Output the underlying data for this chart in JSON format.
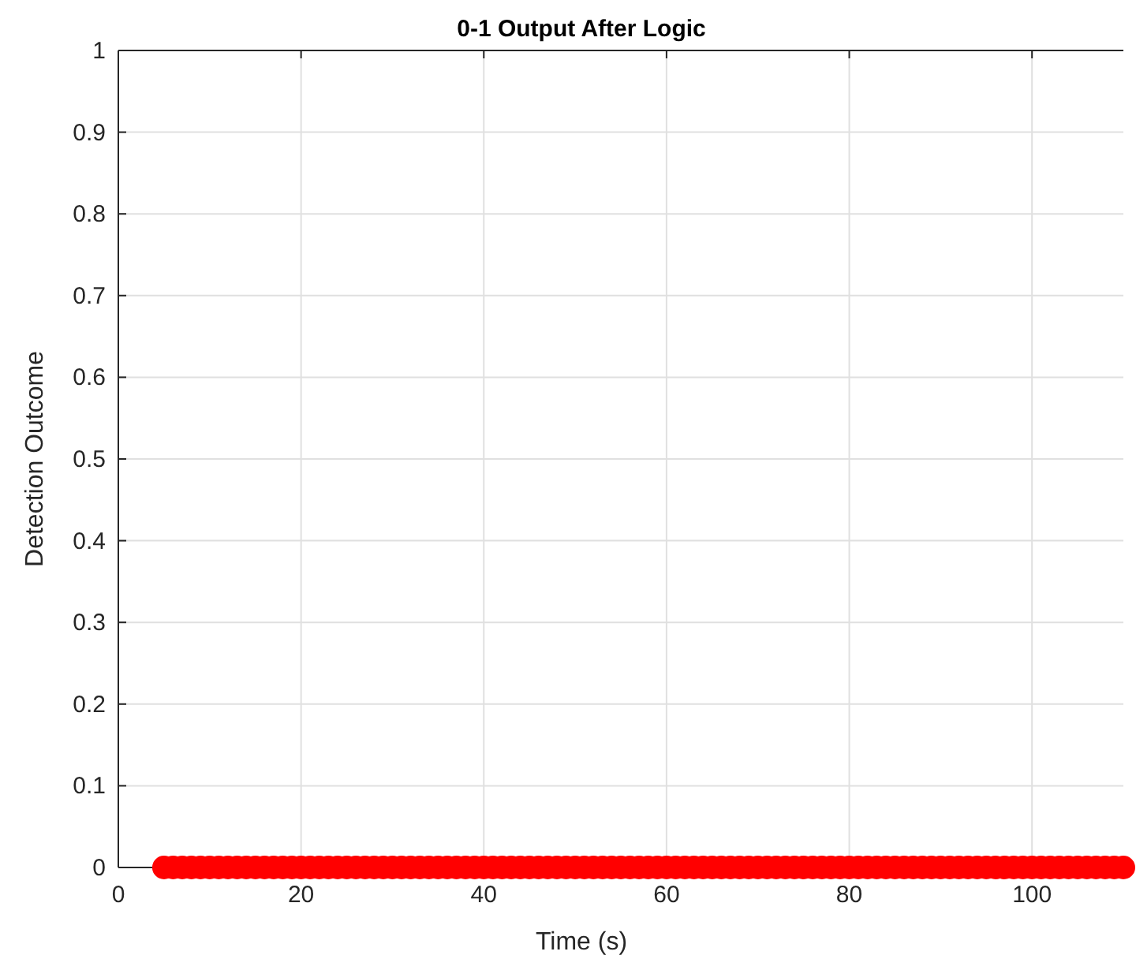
{
  "chart_data": {
    "type": "scatter",
    "title": "0-1 Output After Logic",
    "xlabel": "Time (s)",
    "ylabel": "Detection Outcome",
    "xlim": [
      0,
      110
    ],
    "ylim": [
      0,
      1
    ],
    "xticks": [
      0,
      20,
      40,
      60,
      80,
      100
    ],
    "yticks": [
      0,
      0.1,
      0.2,
      0.3,
      0.4,
      0.5,
      0.6,
      0.7,
      0.8,
      0.9,
      1
    ],
    "grid": true,
    "marker": "circle",
    "x": [
      5,
      6,
      7,
      8,
      9,
      10,
      11,
      12,
      13,
      14,
      15,
      16,
      17,
      18,
      19,
      20,
      21,
      22,
      23,
      24,
      25,
      26,
      27,
      28,
      29,
      30,
      31,
      32,
      33,
      34,
      35,
      36,
      37,
      38,
      39,
      40,
      41,
      42,
      43,
      44,
      45,
      46,
      47,
      48,
      49,
      50,
      51,
      52,
      53,
      54,
      55,
      56,
      57,
      58,
      59,
      60,
      61,
      62,
      63,
      64,
      65,
      66,
      67,
      68,
      69,
      70,
      71,
      72,
      73,
      74,
      75,
      76,
      77,
      78,
      79,
      80,
      81,
      82,
      83,
      84,
      85,
      86,
      87,
      88,
      89,
      90,
      91,
      92,
      93,
      94,
      95,
      96,
      97,
      98,
      99,
      100,
      101,
      102,
      103,
      104,
      105,
      106,
      107,
      108,
      109,
      110
    ],
    "series": [
      {
        "color": "#ff0000",
        "values": [
          0,
          0,
          0,
          0,
          0,
          0,
          0,
          0,
          0,
          0,
          0,
          0,
          0,
          0,
          0,
          0,
          0,
          0,
          0,
          0,
          0,
          0,
          0,
          0,
          0,
          0,
          0,
          0,
          0,
          0,
          0,
          0,
          0,
          0,
          0,
          0,
          0,
          0,
          0,
          0,
          0,
          0,
          0,
          0,
          0,
          0,
          0,
          0,
          0,
          0,
          0,
          0,
          0,
          0,
          0,
          0,
          0,
          0,
          0,
          0,
          0,
          0,
          0,
          0,
          0,
          0,
          0,
          0,
          0,
          0,
          0,
          0,
          0,
          0,
          0,
          0,
          0,
          0,
          0,
          0,
          0,
          0,
          0,
          0,
          0,
          0,
          0,
          0,
          0,
          0,
          0,
          0,
          0,
          0,
          0,
          0,
          0,
          0,
          0,
          0,
          0,
          0,
          0,
          0,
          0,
          0
        ]
      }
    ]
  }
}
